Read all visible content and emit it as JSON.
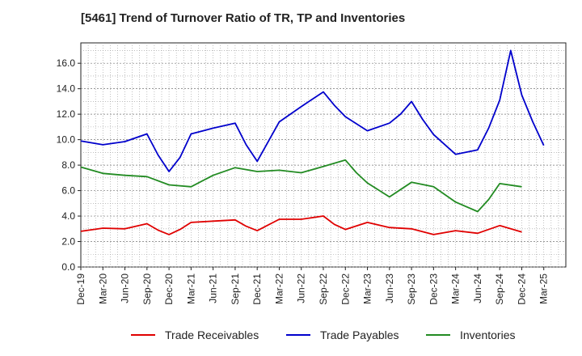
{
  "chart_data": {
    "type": "line",
    "title": "[5461]  Trend of Turnover Ratio of TR, TP and Inventories",
    "xlabel": "",
    "ylabel": "",
    "x": [
      "Dec-19",
      "Mar-20",
      "Jun-20",
      "Sep-20",
      "Dec-20",
      "Mar-21",
      "Jun-21",
      "Sep-21",
      "Dec-21",
      "Mar-22",
      "Jun-22",
      "Sep-22",
      "Dec-22",
      "Mar-23",
      "Jun-23",
      "Sep-23",
      "Dec-23",
      "Mar-24",
      "Jun-24",
      "Sep-24",
      "Dec-24",
      "Mar-25"
    ],
    "x_ticks": [
      "Dec-19",
      "Mar-20",
      "Jun-20",
      "Sep-20",
      "Dec-20",
      "Mar-21",
      "Jun-21",
      "Sep-21",
      "Dec-21",
      "Mar-22",
      "Jun-22",
      "Sep-22",
      "Dec-22",
      "Mar-23",
      "Jun-23",
      "Sep-23",
      "Dec-23",
      "Mar-24",
      "Jun-24",
      "Sep-24",
      "Dec-24",
      "Mar-25"
    ],
    "y_ticks": [
      "0.0",
      "2.0",
      "4.0",
      "6.0",
      "8.0",
      "10.0",
      "12.0",
      "14.0",
      "16.0"
    ],
    "ylim": [
      0,
      17.6
    ],
    "grid": true,
    "legend_position": "bottom",
    "series": [
      {
        "name": "Trade Receivables",
        "color": "#e00000",
        "points": [
          [
            0,
            2.8
          ],
          [
            1,
            3.05
          ],
          [
            2,
            3.0
          ],
          [
            3,
            3.4
          ],
          [
            3.5,
            2.9
          ],
          [
            4,
            2.55
          ],
          [
            4.5,
            2.95
          ],
          [
            5,
            3.5
          ],
          [
            6,
            3.6
          ],
          [
            7,
            3.7
          ],
          [
            7.5,
            3.2
          ],
          [
            8,
            2.85
          ],
          [
            9,
            3.75
          ],
          [
            10,
            3.75
          ],
          [
            11,
            4.0
          ],
          [
            11.5,
            3.35
          ],
          [
            12,
            2.95
          ],
          [
            13,
            3.5
          ],
          [
            14,
            3.1
          ],
          [
            15,
            3.0
          ],
          [
            16,
            2.55
          ],
          [
            17,
            2.85
          ],
          [
            18,
            2.65
          ],
          [
            19,
            3.25
          ],
          [
            20,
            2.75
          ]
        ]
      },
      {
        "name": "Trade Payables",
        "color": "#0000cc",
        "points": [
          [
            0,
            9.9
          ],
          [
            1,
            9.6
          ],
          [
            2,
            9.85
          ],
          [
            3,
            10.45
          ],
          [
            3.5,
            8.8
          ],
          [
            4,
            7.5
          ],
          [
            4.5,
            8.6
          ],
          [
            5,
            10.45
          ],
          [
            6,
            10.9
          ],
          [
            7,
            11.3
          ],
          [
            7.5,
            9.6
          ],
          [
            8,
            8.3
          ],
          [
            9,
            11.4
          ],
          [
            10,
            12.6
          ],
          [
            11,
            13.75
          ],
          [
            11.5,
            12.7
          ],
          [
            12,
            11.8
          ],
          [
            13,
            10.7
          ],
          [
            14,
            11.3
          ],
          [
            14.5,
            12.0
          ],
          [
            15,
            13.0
          ],
          [
            15.5,
            11.6
          ],
          [
            16,
            10.4
          ],
          [
            17,
            8.85
          ],
          [
            18,
            9.2
          ],
          [
            18.5,
            10.9
          ],
          [
            19,
            13.1
          ],
          [
            19.5,
            17.0
          ],
          [
            20,
            13.5
          ],
          [
            20.5,
            11.4
          ],
          [
            21,
            9.55
          ]
        ]
      },
      {
        "name": "Inventories",
        "color": "#228b22",
        "points": [
          [
            0,
            7.85
          ],
          [
            1,
            7.35
          ],
          [
            2,
            7.2
          ],
          [
            3,
            7.1
          ],
          [
            4,
            6.45
          ],
          [
            5,
            6.3
          ],
          [
            6,
            7.2
          ],
          [
            7,
            7.8
          ],
          [
            8,
            7.5
          ],
          [
            9,
            7.6
          ],
          [
            10,
            7.4
          ],
          [
            11,
            7.9
          ],
          [
            12,
            8.4
          ],
          [
            12.5,
            7.4
          ],
          [
            13,
            6.6
          ],
          [
            14,
            5.5
          ],
          [
            15,
            6.65
          ],
          [
            16,
            6.3
          ],
          [
            17,
            5.1
          ],
          [
            18,
            4.35
          ],
          [
            18.5,
            5.3
          ],
          [
            19,
            6.55
          ],
          [
            20,
            6.3
          ]
        ]
      }
    ]
  }
}
